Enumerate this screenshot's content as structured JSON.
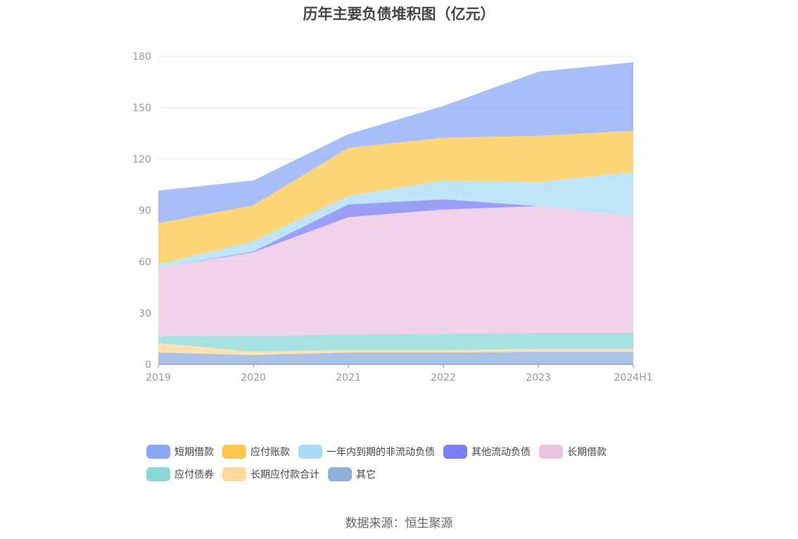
{
  "chart_data": {
    "type": "area",
    "stacked": true,
    "title": "历年主要负债堆积图（亿元）",
    "categories": [
      "2019",
      "2020",
      "2021",
      "2022",
      "2023",
      "2024H1"
    ],
    "yticks": [
      "0",
      "30",
      "60",
      "90",
      "120",
      "150",
      "180"
    ],
    "ylim": [
      0,
      180
    ],
    "grid": true,
    "legend_position": "bottom",
    "series": [
      {
        "name": "其它",
        "color": "#8eaedc",
        "values": [
          7,
          5.5,
          7,
          7,
          7.5,
          7.5
        ]
      },
      {
        "name": "长期应付款合计",
        "color": "#ffd89a",
        "values": [
          5.5,
          2,
          1.5,
          1.5,
          1.5,
          1.5
        ]
      },
      {
        "name": "应付债券",
        "color": "#8ad8d6",
        "values": [
          4,
          9,
          9,
          9.5,
          9.5,
          9.5
        ]
      },
      {
        "name": "长期借款",
        "color": "#ebc4e0",
        "values": [
          40,
          49,
          68.5,
          72.5,
          74,
          68
        ]
      },
      {
        "name": "其他流动负债",
        "color": "#7b7ff5",
        "values": [
          0,
          0.5,
          7.5,
          6,
          0,
          0
        ]
      },
      {
        "name": "一年内到期的非流动负债",
        "color": "#a8dcf6",
        "values": [
          2,
          6,
          5,
          11,
          14,
          26
        ]
      },
      {
        "name": "应付账款",
        "color": "#ffc84a",
        "values": [
          24,
          21,
          28,
          25,
          27,
          24
        ]
      },
      {
        "name": "短期借款",
        "color": "#8aa8f7",
        "values": [
          19,
          14.5,
          8,
          18.5,
          37.5,
          40
        ]
      }
    ],
    "legend_order": [
      "短期借款",
      "应付账款",
      "一年内到期的非流动负债",
      "其他流动负债",
      "长期借款",
      "应付债券",
      "长期应付款合计",
      "其它"
    ]
  },
  "source": "数据来源：恒生聚源"
}
